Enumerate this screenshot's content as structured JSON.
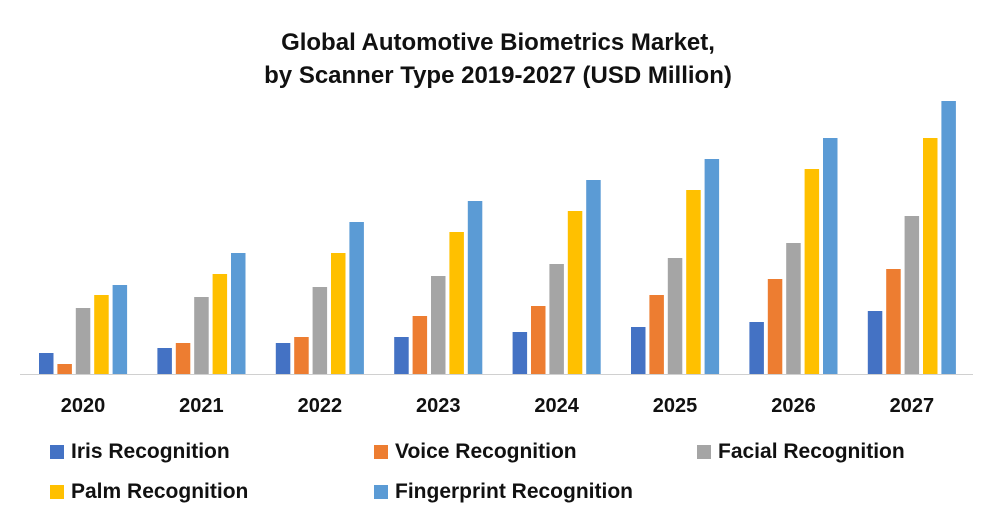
{
  "chart_data": {
    "type": "bar",
    "title": "Global Automotive Biometrics Market, by Scanner Type 2019-2027 (USD Million)",
    "title_lines": [
      "Global Automotive Biometrics Market,",
      "by Scanner Type 2019-2027 (USD Million)"
    ],
    "xlabel": "",
    "ylabel": "",
    "categories": [
      "2020",
      "2021",
      "2022",
      "2023",
      "2024",
      "2025",
      "2026",
      "2027"
    ],
    "series": [
      {
        "name": "Iris Recognition",
        "color": "#4472C4",
        "values": [
          21,
          26,
          31,
          37,
          42,
          47,
          52,
          63
        ]
      },
      {
        "name": "Voice Recognition",
        "color": "#ED7D31",
        "values": [
          10,
          31,
          37,
          58,
          68,
          79,
          95,
          105
        ]
      },
      {
        "name": "Facial Recognition",
        "color": "#A5A5A5",
        "values": [
          66,
          77,
          87,
          98,
          110,
          116,
          131,
          158
        ]
      },
      {
        "name": "Palm Recognition",
        "color": "#FFC000",
        "values": [
          79,
          100,
          121,
          142,
          163,
          184,
          205,
          236
        ]
      },
      {
        "name": "Fingerprint Recognition",
        "color": "#5B9BD5",
        "values": [
          89,
          121,
          152,
          173,
          194,
          215,
          236,
          273
        ]
      }
    ],
    "value_note": "Relative bar heights (pixels); no y-axis scale shown",
    "ylim": [
      0,
      280
    ],
    "grid": false,
    "legend_position": "bottom"
  }
}
